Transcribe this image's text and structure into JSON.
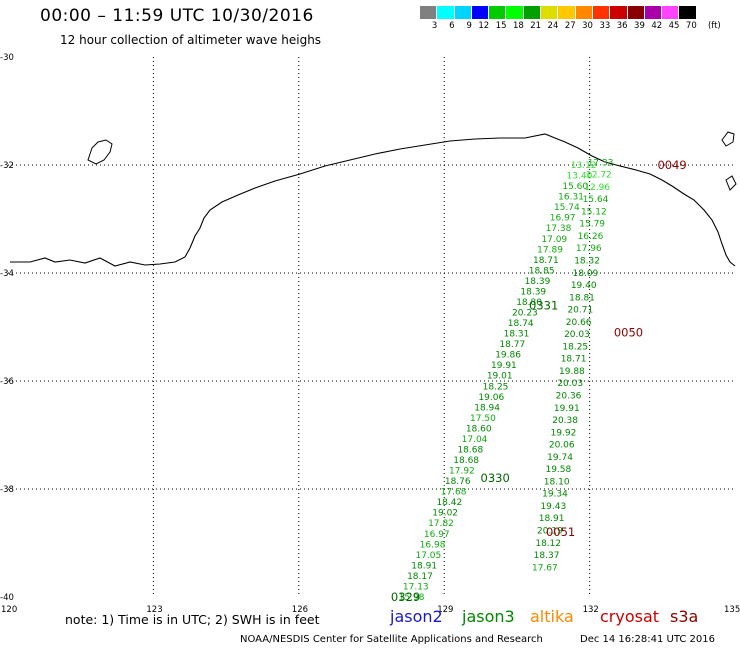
{
  "header": {
    "title": "00:00 – 11:59 UTC 10/30/2016",
    "subtitle": "12 hour collection of altimeter wave heighs"
  },
  "scale": {
    "unit": "(ft)",
    "colors": [
      "#808080",
      "#00ffff",
      "#00d4ff",
      "#0000ff",
      "#00cc00",
      "#00ff00",
      "#00a000",
      "#dddd00",
      "#ffc800",
      "#ff8800",
      "#ff3300",
      "#cc0000",
      "#880000",
      "#aa00aa",
      "#ff44ff",
      "#000000"
    ],
    "labels": [
      "3",
      "6",
      "9",
      "12",
      "15",
      "18",
      "21",
      "24",
      "27",
      "30",
      "33",
      "36",
      "39",
      "42",
      "45",
      "70"
    ]
  },
  "axes": {
    "lat_labels": [
      "-30",
      "-32",
      "-34",
      "-36",
      "-38",
      "-40"
    ],
    "lon_labels": [
      "120",
      "123",
      "126",
      "129",
      "132",
      "135"
    ],
    "grid": "dotted"
  },
  "pass_labels": [
    {
      "text": "0049",
      "color": "#880000",
      "lon": 133.4,
      "lat": -32.0
    },
    {
      "text": "0050",
      "color": "#880000",
      "lon": 132.5,
      "lat": -35.1
    },
    {
      "text": "0051",
      "color": "#880000",
      "lon": 131.1,
      "lat": -38.8
    },
    {
      "text": "0331",
      "color": "#006600",
      "lon": 130.75,
      "lat": -34.6
    },
    {
      "text": "0330",
      "color": "#006600",
      "lon": 129.75,
      "lat": -37.8
    },
    {
      "text": "0329",
      "color": "#006600",
      "lon": 127.9,
      "lat": -40.0
    }
  ],
  "tracks": [
    {
      "name": "track-0049",
      "start": [
        132.25,
        -31.95
      ],
      "end": [
        131.1,
        -39.45
      ],
      "values": [
        "17.33",
        "12.72",
        "12.96",
        "15.64",
        "15.12",
        "15.79",
        "16.26",
        "17.96",
        "18.32",
        "18.09",
        "19.40",
        "18.81",
        "20.71",
        "20.66",
        "20.03",
        "18.25",
        "18.71",
        "19.88",
        "20.03",
        "20.36",
        "19.91",
        "20.38",
        "19.92",
        "20.06",
        "19.74",
        "19.58",
        "18.10",
        "19.34",
        "19.43",
        "18.91",
        "20.19",
        "18.12",
        "18.37",
        "17.67"
      ]
    },
    {
      "name": "track-0330",
      "start": [
        131.9,
        -32.0
      ],
      "end": [
        128.35,
        -40.0
      ],
      "values": [
        "13.12",
        "13.40",
        "15.60",
        "16.31",
        "15.74",
        "16.97",
        "17.38",
        "17.09",
        "17.89",
        "18.71",
        "18.85",
        "18.39",
        "18.39",
        "18.80",
        "20.23",
        "18.74",
        "18.31",
        "18.77",
        "19.86",
        "19.91",
        "19.01",
        "18.25",
        "19.06",
        "18.94",
        "17.50",
        "18.60",
        "17.04",
        "18.68",
        "18.68",
        "17.92",
        "18.76",
        "17.68",
        "18.42",
        "19.02",
        "17.82",
        "16.97",
        "16.98",
        "17.05",
        "18.91",
        "18.17",
        "17.13",
        "15.98"
      ]
    }
  ],
  "legend": {
    "note": "note: 1) Time is in UTC; 2) SWH is in feet",
    "satellites": [
      {
        "name": "jason2",
        "color": "#1a1acc"
      },
      {
        "name": "jason3",
        "color": "#008800"
      },
      {
        "name": "altika",
        "color": "#ff8800"
      },
      {
        "name": "cryosat",
        "color": "#cc0000"
      },
      {
        "name": "s3a",
        "color": "#880000"
      }
    ]
  },
  "footer": {
    "credit": "NOAA/NESDIS Center for Satellite Applications and Research",
    "timestamp": "Dec 14 16:28:41 UTC 2016"
  }
}
